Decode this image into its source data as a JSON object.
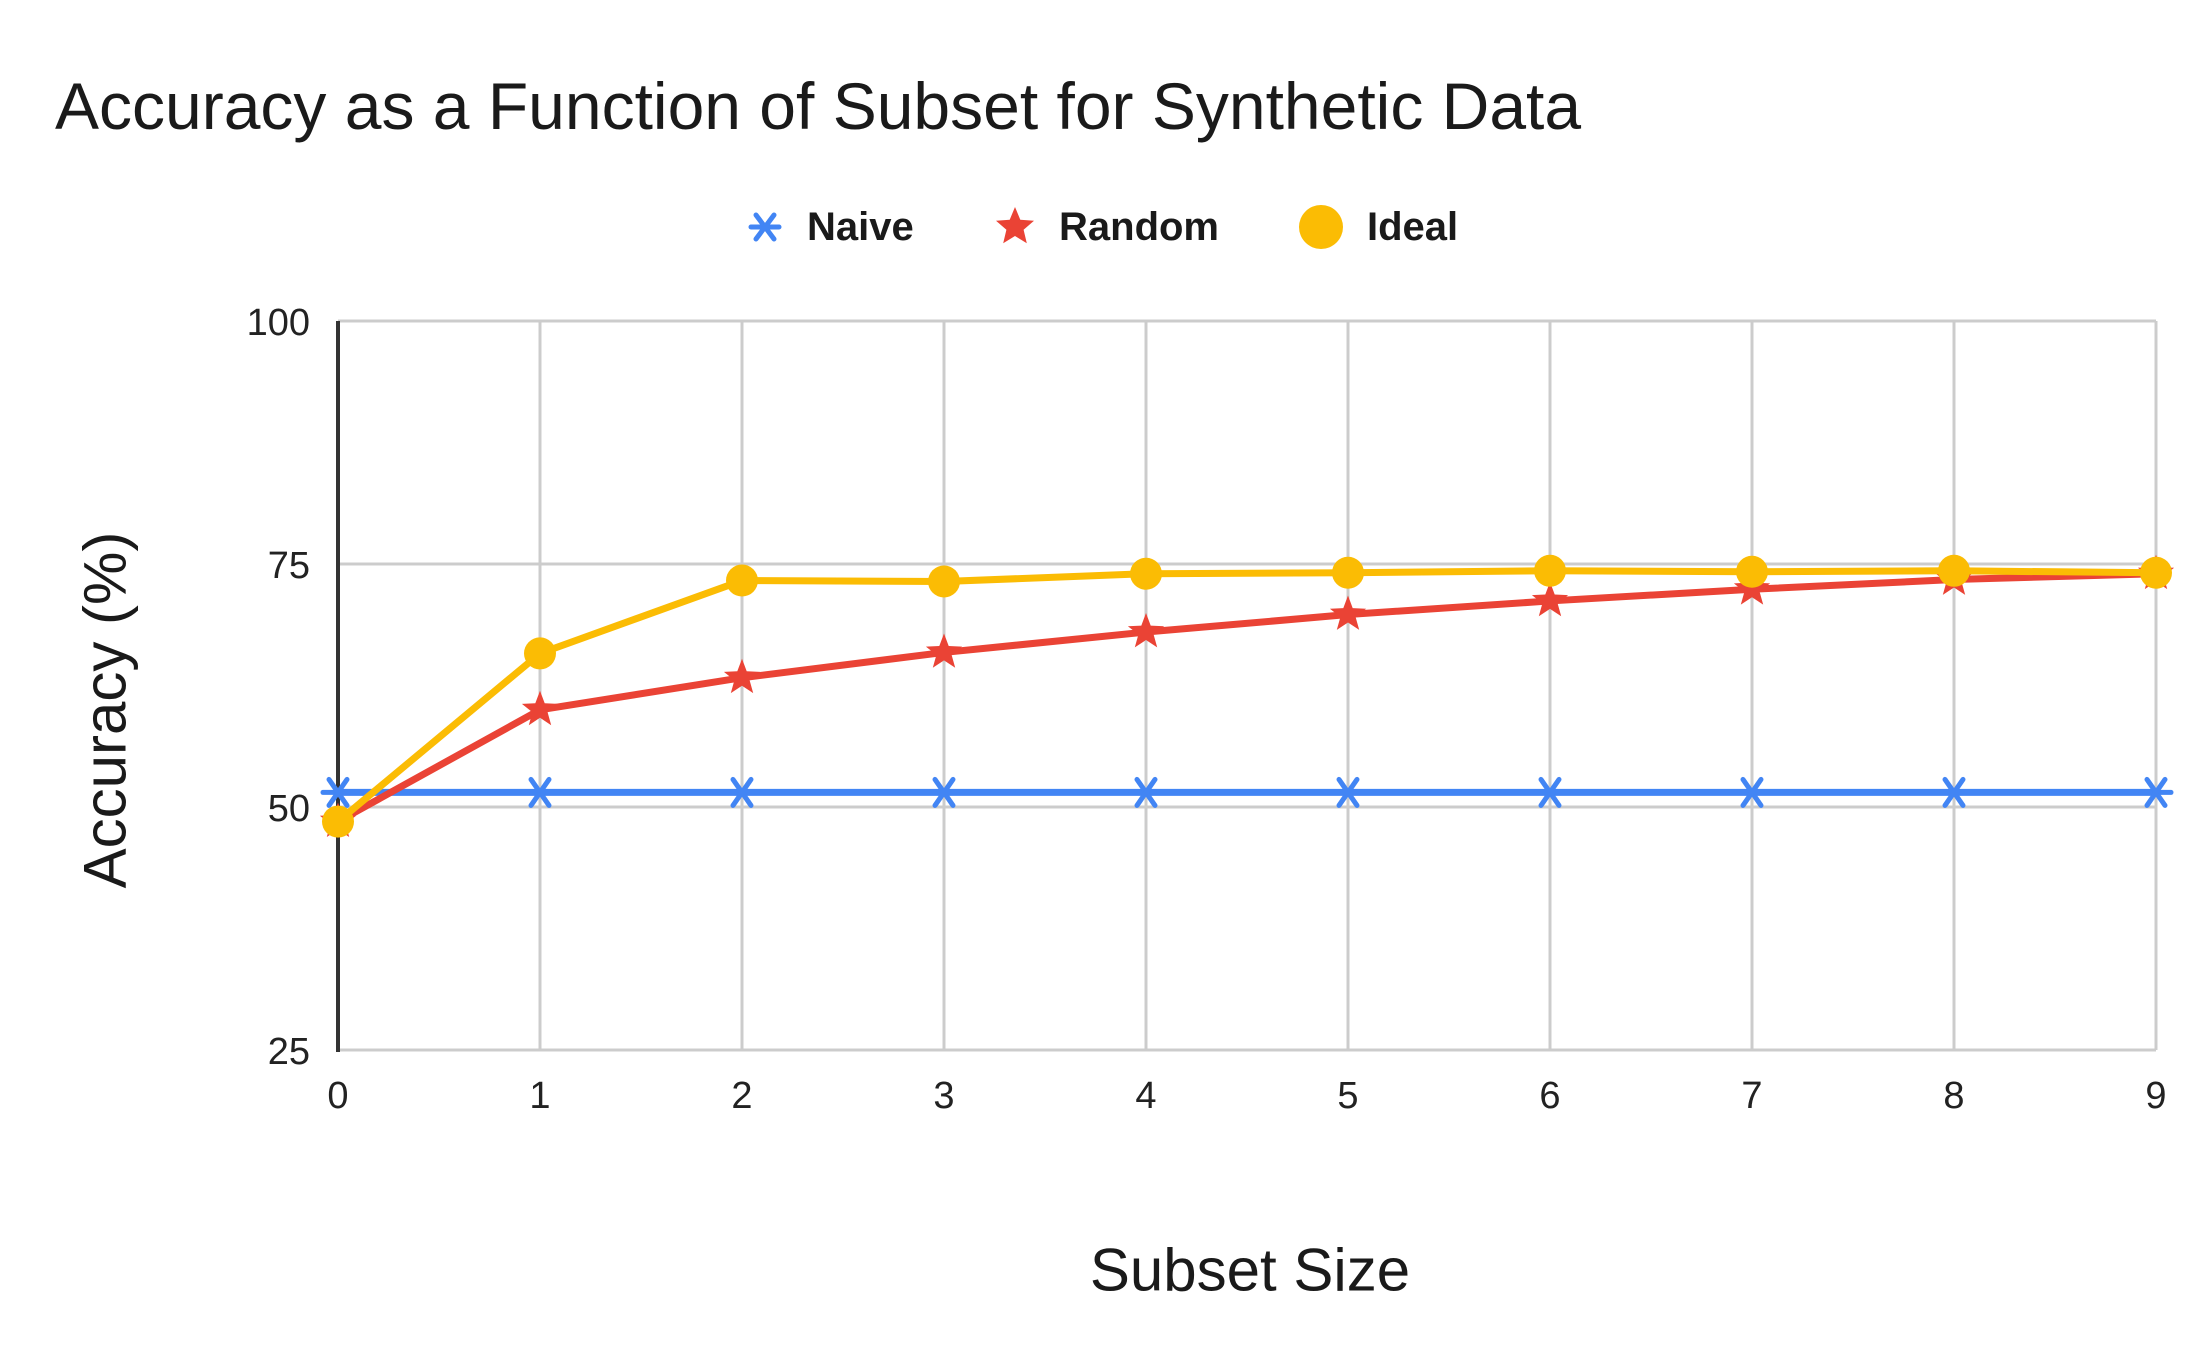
{
  "chart_data": {
    "type": "line",
    "title": "Accuracy as a Function of Subset for Synthetic Data",
    "xlabel": "Subset Size",
    "ylabel": "Accuracy (%)",
    "x": [
      0,
      1,
      2,
      3,
      4,
      5,
      6,
      7,
      8,
      9
    ],
    "xlim": [
      0,
      9
    ],
    "ylim": [
      25,
      100
    ],
    "xticks": [
      "0",
      "1",
      "2",
      "3",
      "4",
      "5",
      "6",
      "7",
      "8",
      "9"
    ],
    "yticks": [
      "25",
      "50",
      "75",
      "100"
    ],
    "grid": true,
    "legend_position": "top-center",
    "series": [
      {
        "name": "Naive",
        "marker": "x-star",
        "color": "#4285F4",
        "values": [
          51.5,
          51.5,
          51.5,
          51.5,
          51.5,
          51.5,
          51.5,
          51.5,
          51.5,
          51.5
        ]
      },
      {
        "name": "Random",
        "marker": "star",
        "color": "#EA4335",
        "values": [
          48.5,
          60.0,
          63.3,
          65.9,
          68.0,
          69.8,
          71.2,
          72.4,
          73.4,
          74.0
        ]
      },
      {
        "name": "Ideal",
        "marker": "circle",
        "color": "#FBBC04",
        "values": [
          48.5,
          65.8,
          73.3,
          73.2,
          74.0,
          74.1,
          74.3,
          74.2,
          74.3,
          74.1
        ]
      }
    ]
  }
}
